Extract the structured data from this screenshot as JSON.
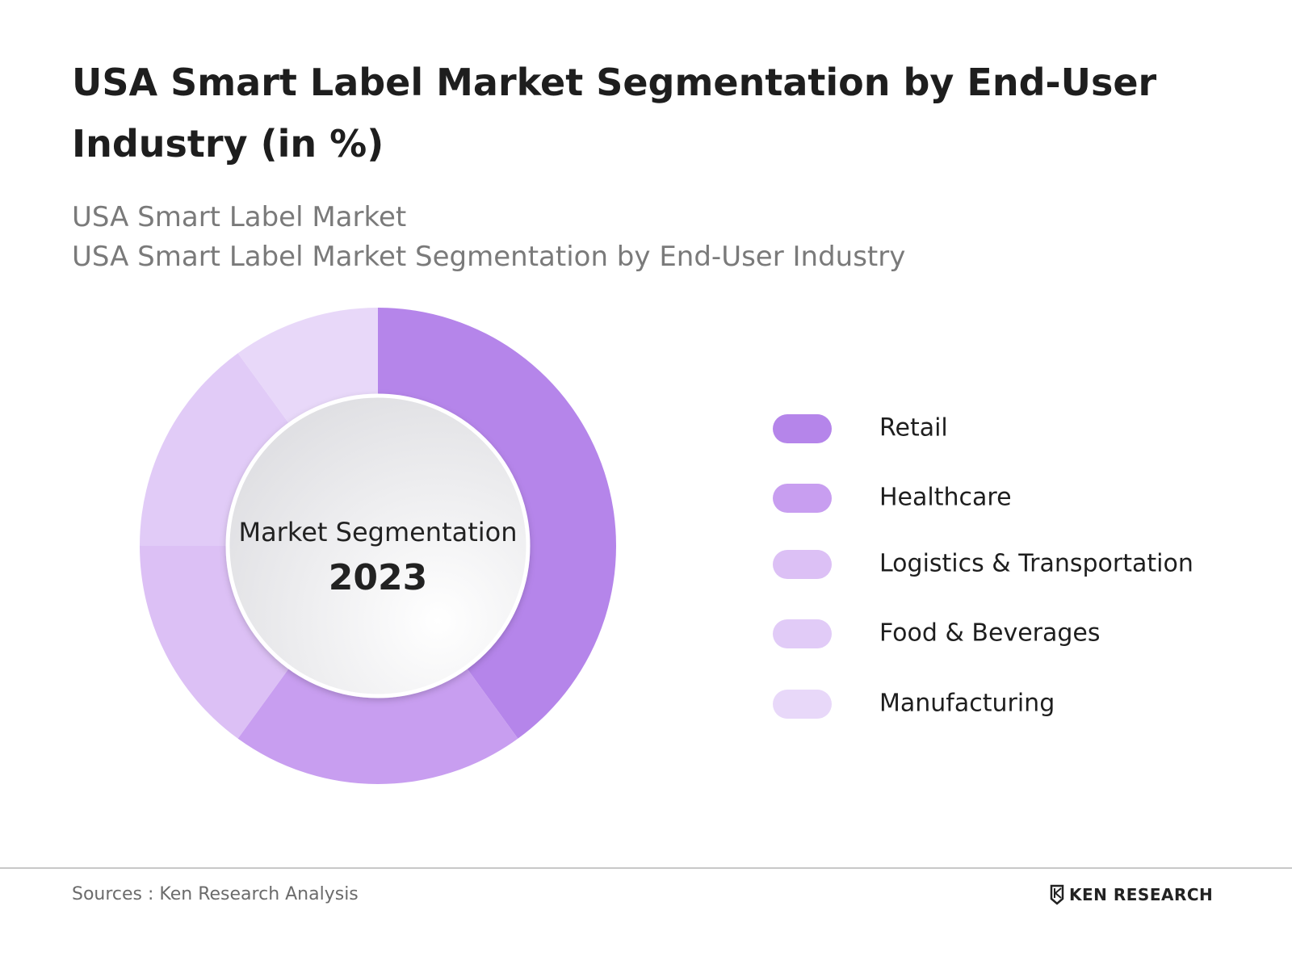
{
  "chart_data": {
    "type": "donut",
    "title": [
      "USA Smart Label Market Segmentation by End-User",
      "Industry (in %)"
    ],
    "subtitles": [
      "USA Smart Label Market",
      "USA Smart Label Market Segmentation by End-User Industry"
    ],
    "center_label": "Market Segmentation",
    "center_year": "2023",
    "categories": [
      "Retail",
      "Healthcare",
      "Logistics & Transportation",
      "Food & Beverages",
      "Manufacturing"
    ],
    "values": [
      40,
      20,
      15,
      15,
      10
    ],
    "colors": [
      "#b585ea",
      "#c89ef0",
      "#dcc0f5",
      "#e1cbf7",
      "#e8d8f9"
    ],
    "legend": "right"
  },
  "footer": {
    "source": "Sources : Ken Research Analysis",
    "brand": "KEN RESEARCH"
  }
}
